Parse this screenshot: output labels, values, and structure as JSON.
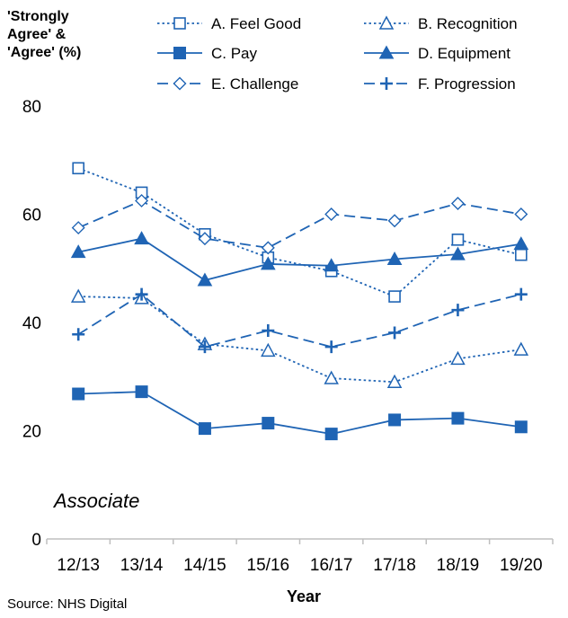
{
  "chart_data": {
    "type": "line",
    "ylabel_lines": [
      "'Strongly",
      "Agree' &",
      "'Agree' (%)"
    ],
    "xlabel": "Year",
    "annotation": "Associate",
    "source": "Source: NHS Digital",
    "categories": [
      "12/13",
      "13/14",
      "14/15",
      "15/16",
      "16/17",
      "17/18",
      "18/19",
      "19/20"
    ],
    "ylim": [
      0,
      80
    ],
    "yticks": [
      0,
      20,
      40,
      60,
      80
    ],
    "legend_placement": "top",
    "color": "#1f64b4",
    "series": [
      {
        "name": "A. Feel Good",
        "marker": "square-open",
        "dash": "dotted",
        "values": [
          68.5,
          64.0,
          56.3,
          52.0,
          49.5,
          44.8,
          55.3,
          52.5
        ]
      },
      {
        "name": "B. Recognition",
        "marker": "triangle-open",
        "dash": "dotted",
        "values": [
          44.8,
          44.5,
          36.0,
          34.8,
          29.7,
          29.0,
          33.3,
          35.0
        ]
      },
      {
        "name": "C. Pay",
        "marker": "square-filled",
        "dash": "solid",
        "values": [
          26.8,
          27.2,
          20.4,
          21.4,
          19.4,
          22.0,
          22.3,
          20.7
        ]
      },
      {
        "name": "D. Equipment",
        "marker": "triangle-filled",
        "dash": "solid",
        "values": [
          53.0,
          55.5,
          47.8,
          50.8,
          50.5,
          51.7,
          52.6,
          54.5
        ]
      },
      {
        "name": "E. Challenge",
        "marker": "diamond-open",
        "dash": "dashed",
        "values": [
          57.5,
          62.5,
          55.5,
          53.8,
          60.0,
          58.8,
          62.0,
          60.0
        ]
      },
      {
        "name": "F. Progression",
        "marker": "plus",
        "dash": "dashed",
        "values": [
          37.8,
          45.2,
          35.5,
          38.5,
          35.5,
          38.1,
          42.3,
          45.2
        ]
      }
    ]
  }
}
